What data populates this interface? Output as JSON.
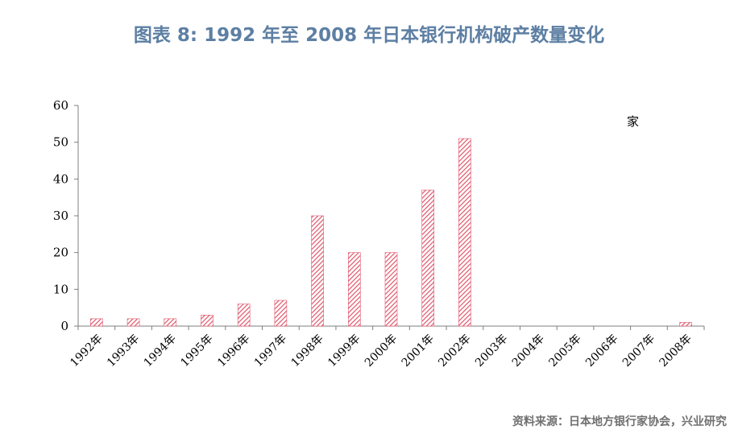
{
  "title": "图表 8:  1992 年至 2008 年日本银行机构破产数量变化",
  "source": "资料来源：日本地方银行家协会，兴业研究",
  "unit_label": "家",
  "colors": {
    "title": "#5d7fa3",
    "bar": "#e0556a",
    "axis": "#7f7f7f",
    "source": "#707070"
  },
  "chart_data": {
    "type": "bar",
    "title": "图表 8:  1992 年至 2008 年日本银行机构破产数量变化",
    "xlabel": "",
    "ylabel": "",
    "unit": "家",
    "categories": [
      "1992年",
      "1993年",
      "1994年",
      "1995年",
      "1996年",
      "1997年",
      "1998年",
      "1999年",
      "2000年",
      "2001年",
      "2002年",
      "2003年",
      "2004年",
      "2005年",
      "2006年",
      "2007年",
      "2008年"
    ],
    "values": [
      2,
      2,
      2,
      3,
      6,
      7,
      30,
      20,
      20,
      37,
      51,
      0,
      0,
      0,
      0,
      0,
      1
    ],
    "ylim": [
      0,
      60
    ],
    "yticks": [
      0,
      10,
      20,
      30,
      40,
      50,
      60
    ],
    "grid": false,
    "bar_fill": "diagonal-hatch"
  }
}
